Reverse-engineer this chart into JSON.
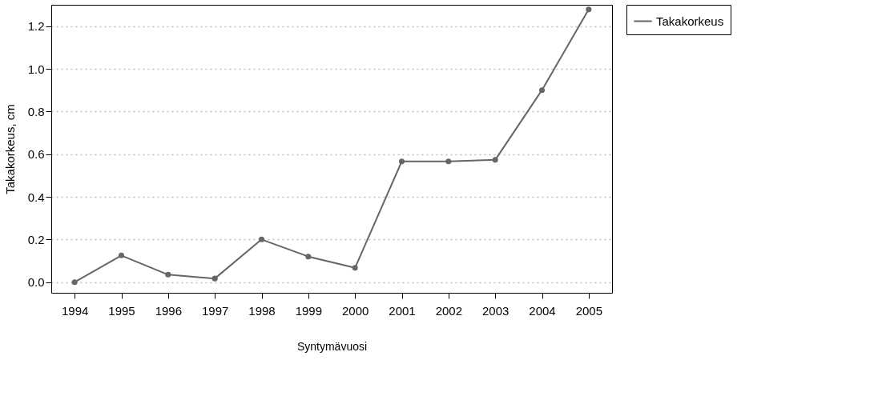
{
  "chart_data": {
    "type": "line",
    "xlabel": "Syntymävuosi",
    "ylabel": "Takakorkeus, cm",
    "categories": [
      "1994",
      "1995",
      "1996",
      "1997",
      "1998",
      "1999",
      "2000",
      "2001",
      "2002",
      "2003",
      "2004",
      "2005"
    ],
    "series": [
      {
        "name": "Takakorkeus",
        "color": "#666666",
        "values": [
          0.0,
          0.125,
          0.035,
          0.017,
          0.2,
          0.12,
          0.067,
          0.566,
          0.566,
          0.573,
          0.9,
          1.278
        ]
      }
    ],
    "ylim": [
      -0.05,
      1.3
    ],
    "yticks": [
      {
        "value": 0,
        "label": "0.0"
      },
      0.2,
      0.4,
      0.6,
      0.8,
      {
        "value": 1,
        "label": "1.0"
      },
      1.2
    ],
    "grid": "y",
    "legend": "right",
    "marker": "circle",
    "line_style": "solid"
  }
}
